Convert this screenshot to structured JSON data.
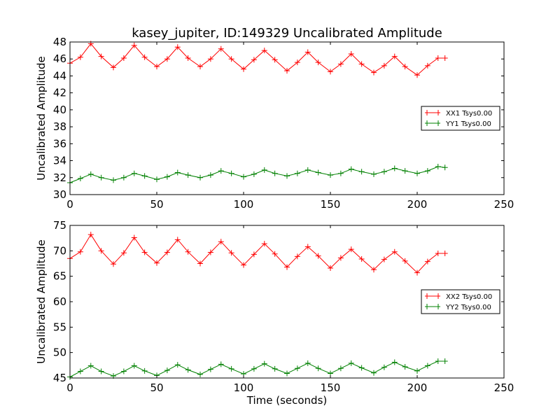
{
  "figure": {
    "title": "kasey_jupiter, ID:149329 Uncalibrated Amplitude"
  },
  "chart_data": [
    {
      "type": "line",
      "panel": "top",
      "xlabel": "",
      "ylabel": "Uncalibrated Amplitude",
      "xlim": [
        0,
        250
      ],
      "ylim": [
        30,
        48
      ],
      "xticks": [
        "0",
        "50",
        "100",
        "150",
        "200",
        "250"
      ],
      "yticks": [
        "30",
        "32",
        "34",
        "36",
        "38",
        "40",
        "42",
        "44",
        "46",
        "48"
      ],
      "legend_position": "right",
      "grid": false,
      "series": [
        {
          "name": "XX1 Tsys0.00",
          "color": "#ff0000",
          "marker": "plus",
          "x": [
            0,
            6,
            12,
            18,
            25,
            31,
            37,
            43,
            50,
            56,
            62,
            68,
            75,
            81,
            87,
            93,
            100,
            106,
            112,
            118,
            125,
            131,
            137,
            143,
            150,
            156,
            162,
            168,
            175,
            181,
            187,
            193,
            200,
            206,
            212,
            216
          ],
          "values": [
            45.5,
            46.2,
            47.8,
            46.3,
            45.0,
            46.1,
            47.6,
            46.2,
            45.1,
            46.0,
            47.4,
            46.1,
            45.1,
            46.0,
            47.2,
            46.0,
            44.8,
            45.9,
            47.0,
            45.9,
            44.6,
            45.6,
            46.8,
            45.6,
            44.5,
            45.4,
            46.6,
            45.4,
            44.4,
            45.2,
            46.3,
            45.1,
            44.1,
            45.2,
            46.1,
            46.1
          ]
        },
        {
          "name": "YY1 Tsys0.00",
          "color": "#008000",
          "marker": "plus",
          "x": [
            0,
            6,
            12,
            18,
            25,
            31,
            37,
            43,
            50,
            56,
            62,
            68,
            75,
            81,
            87,
            93,
            100,
            106,
            112,
            118,
            125,
            131,
            137,
            143,
            150,
            156,
            162,
            168,
            175,
            181,
            187,
            193,
            200,
            206,
            212,
            216
          ],
          "values": [
            31.4,
            31.9,
            32.4,
            32.0,
            31.7,
            32.0,
            32.5,
            32.2,
            31.8,
            32.1,
            32.6,
            32.3,
            32.0,
            32.3,
            32.8,
            32.5,
            32.1,
            32.4,
            32.9,
            32.5,
            32.2,
            32.5,
            32.9,
            32.6,
            32.3,
            32.5,
            33.0,
            32.7,
            32.4,
            32.7,
            33.1,
            32.8,
            32.5,
            32.8,
            33.3,
            33.2
          ]
        }
      ]
    },
    {
      "type": "line",
      "panel": "bottom",
      "xlabel": "Time (seconds)",
      "ylabel": "Uncalibrated Amplitude",
      "xlim": [
        0,
        250
      ],
      "ylim": [
        45,
        75
      ],
      "xticks": [
        "0",
        "50",
        "100",
        "150",
        "200",
        "250"
      ],
      "yticks": [
        "45",
        "50",
        "55",
        "60",
        "65",
        "70",
        "75"
      ],
      "legend_position": "right",
      "grid": false,
      "series": [
        {
          "name": "XX2 Tsys0.00",
          "color": "#ff0000",
          "marker": "plus",
          "x": [
            0,
            6,
            12,
            18,
            25,
            31,
            37,
            43,
            50,
            56,
            62,
            68,
            75,
            81,
            87,
            93,
            100,
            106,
            112,
            118,
            125,
            131,
            137,
            143,
            150,
            156,
            162,
            168,
            175,
            181,
            187,
            193,
            200,
            206,
            212,
            216
          ],
          "values": [
            68.5,
            69.8,
            73.2,
            70.0,
            67.4,
            69.6,
            72.6,
            69.7,
            67.6,
            69.7,
            72.2,
            69.8,
            67.5,
            69.7,
            71.8,
            69.6,
            67.2,
            69.3,
            71.4,
            69.4,
            66.8,
            68.9,
            70.8,
            69.0,
            66.6,
            68.6,
            70.3,
            68.4,
            66.3,
            68.3,
            69.8,
            68.0,
            65.7,
            67.9,
            69.5,
            69.5
          ]
        },
        {
          "name": "YY2 Tsys0.00",
          "color": "#008000",
          "marker": "plus",
          "x": [
            0,
            6,
            12,
            18,
            25,
            31,
            37,
            43,
            50,
            56,
            62,
            68,
            75,
            81,
            87,
            93,
            100,
            106,
            112,
            118,
            125,
            131,
            137,
            143,
            150,
            156,
            162,
            168,
            175,
            181,
            187,
            193,
            200,
            206,
            212,
            216
          ],
          "values": [
            45.2,
            46.3,
            47.4,
            46.3,
            45.4,
            46.3,
            47.4,
            46.4,
            45.5,
            46.5,
            47.6,
            46.6,
            45.7,
            46.7,
            47.7,
            46.8,
            45.8,
            46.8,
            47.8,
            46.8,
            45.9,
            46.9,
            47.9,
            46.9,
            45.9,
            46.9,
            47.9,
            47.0,
            46.0,
            47.1,
            48.1,
            47.2,
            46.4,
            47.4,
            48.3,
            48.3
          ]
        }
      ]
    }
  ]
}
